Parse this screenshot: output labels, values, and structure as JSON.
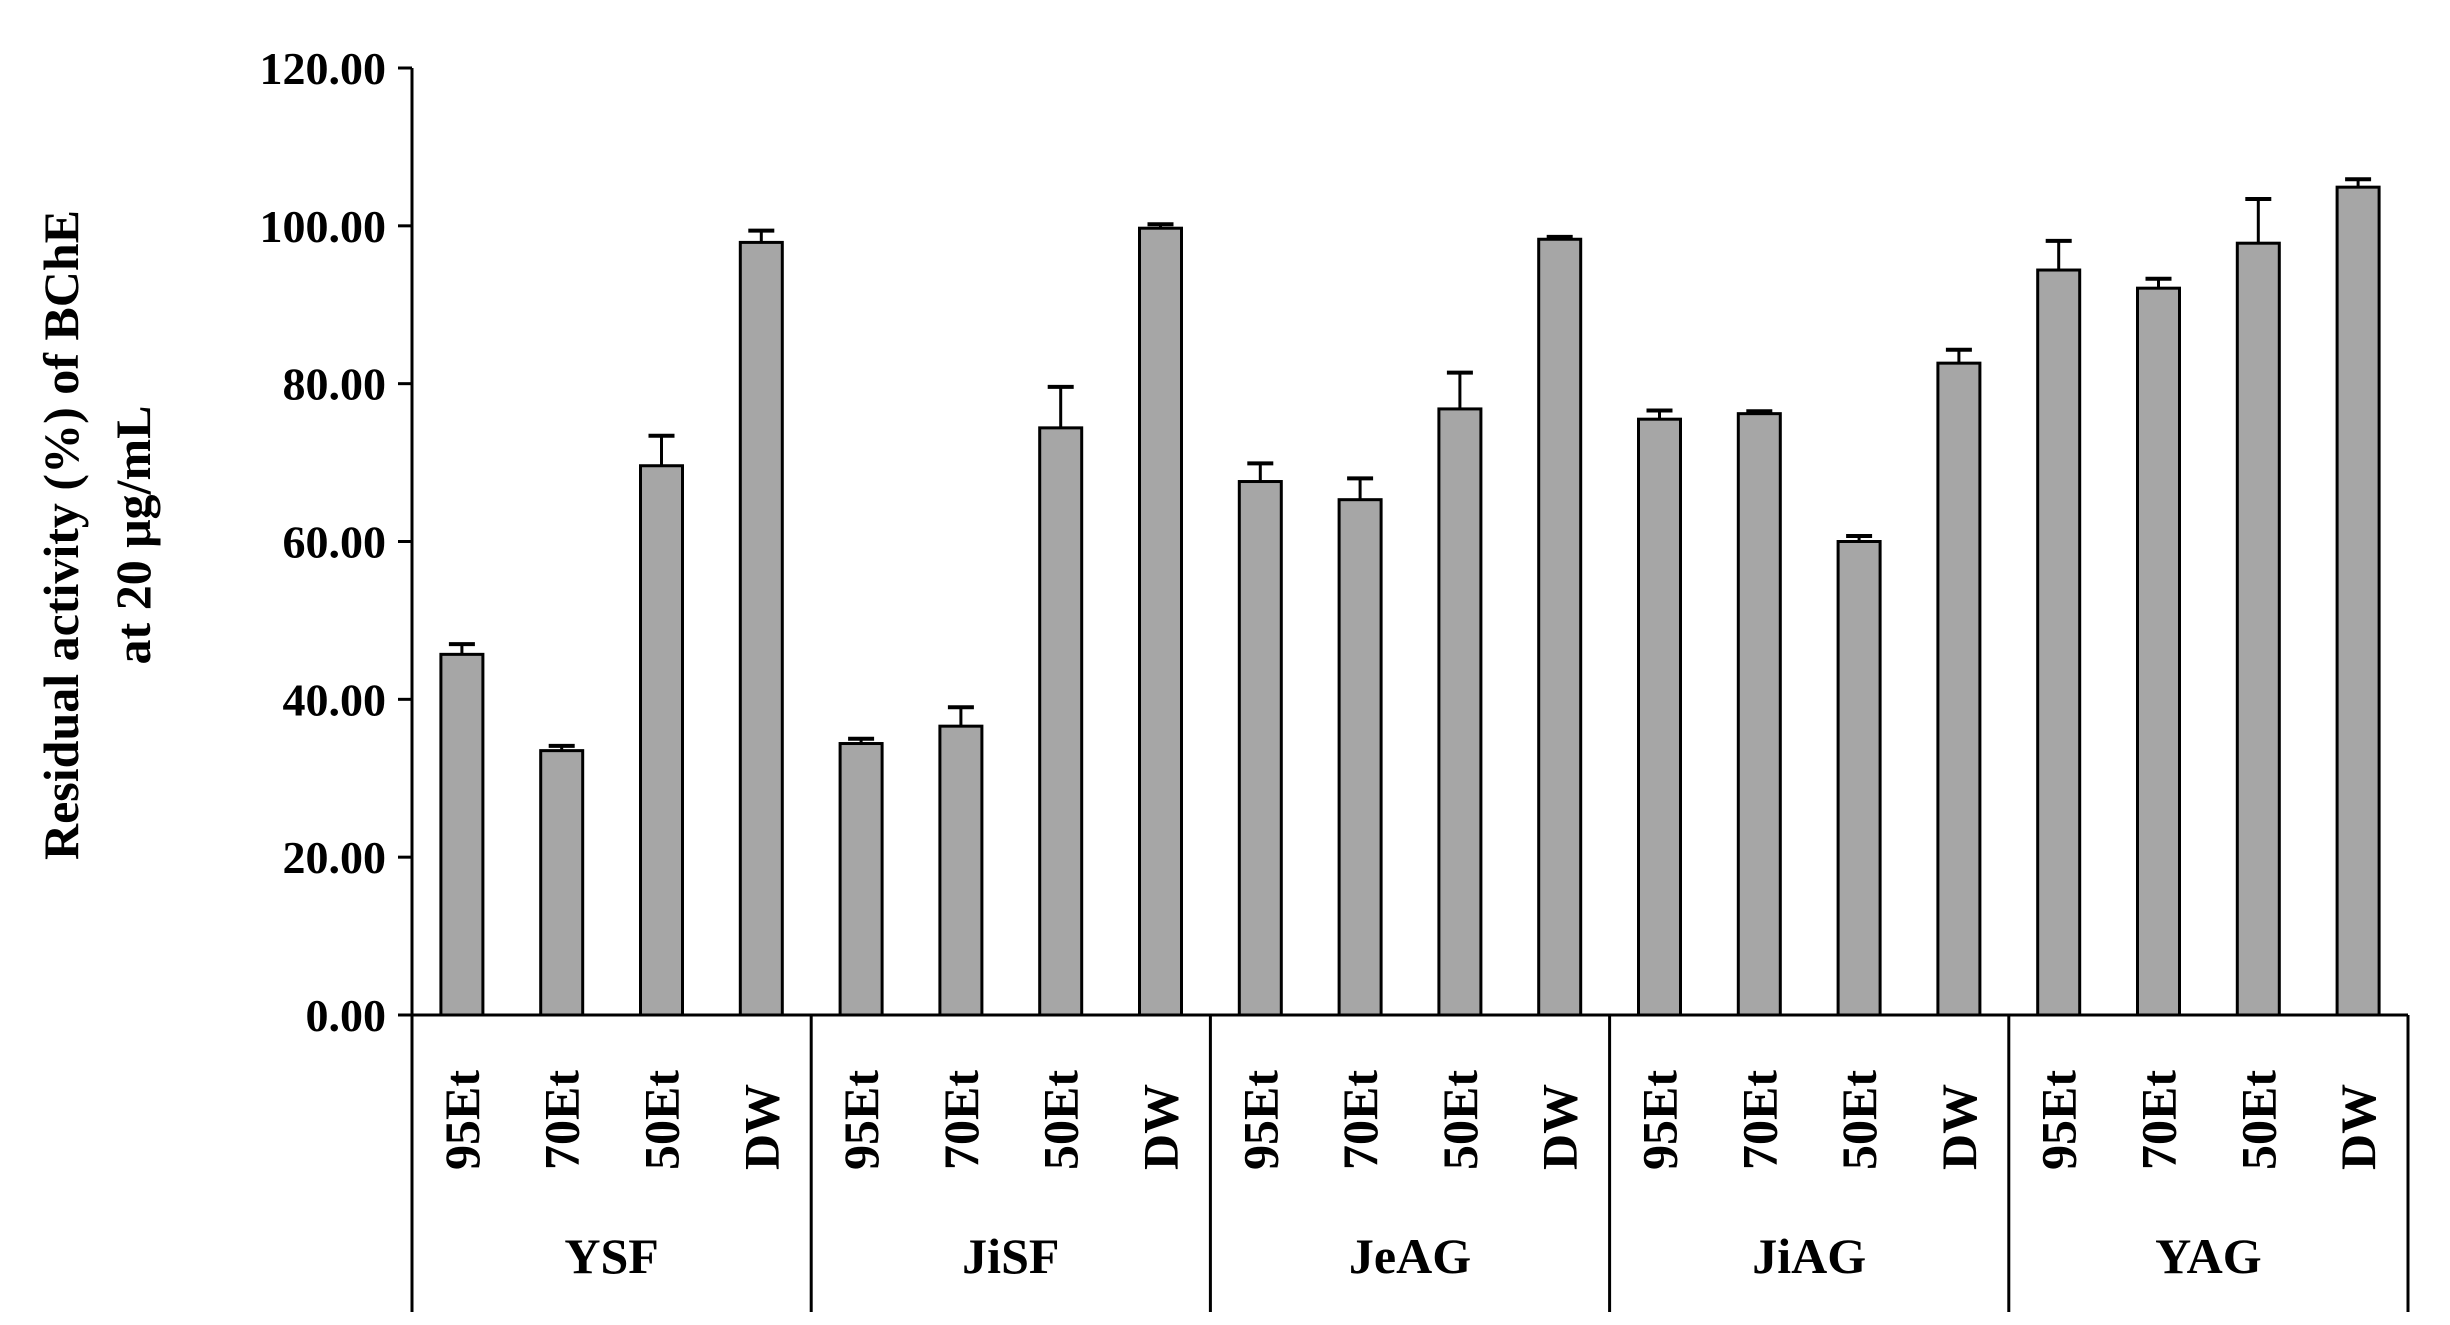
{
  "chart_data": {
    "type": "bar",
    "ylabel_lines": [
      "Residual activity (%) of BChE",
      "at 20 μg/mL"
    ],
    "ylim": [
      0,
      120
    ],
    "yticks": [
      "0.00",
      "20.00",
      "40.00",
      "60.00",
      "80.00",
      "100.00",
      "120.00"
    ],
    "grid": false,
    "bar_color": "#a6a6a6",
    "groups": [
      {
        "name": "YSF",
        "categories": [
          "95Et",
          "70Et",
          "50Et",
          "DW"
        ],
        "values": [
          45.7,
          33.5,
          69.6,
          97.9
        ],
        "errors": [
          1.3,
          0.6,
          3.8,
          1.5
        ]
      },
      {
        "name": "JiSF",
        "categories": [
          "95Et",
          "70Et",
          "50Et",
          "DW"
        ],
        "values": [
          34.4,
          36.6,
          74.4,
          99.7
        ],
        "errors": [
          0.6,
          2.4,
          5.2,
          0.5
        ]
      },
      {
        "name": "JeAG",
        "categories": [
          "95Et",
          "70Et",
          "50Et",
          "DW"
        ],
        "values": [
          67.6,
          65.3,
          76.8,
          98.3
        ],
        "errors": [
          2.3,
          2.7,
          4.6,
          0.3
        ]
      },
      {
        "name": "JiAG",
        "categories": [
          "95Et",
          "70Et",
          "50Et",
          "DW"
        ],
        "values": [
          75.5,
          76.2,
          60.0,
          82.6
        ],
        "errors": [
          1.1,
          0.3,
          0.7,
          1.7
        ]
      },
      {
        "name": "YAG",
        "categories": [
          "95Et",
          "70Et",
          "50Et",
          "DW"
        ],
        "values": [
          94.4,
          92.1,
          97.8,
          104.9
        ],
        "errors": [
          3.7,
          1.2,
          5.6,
          1.0
        ]
      }
    ]
  }
}
